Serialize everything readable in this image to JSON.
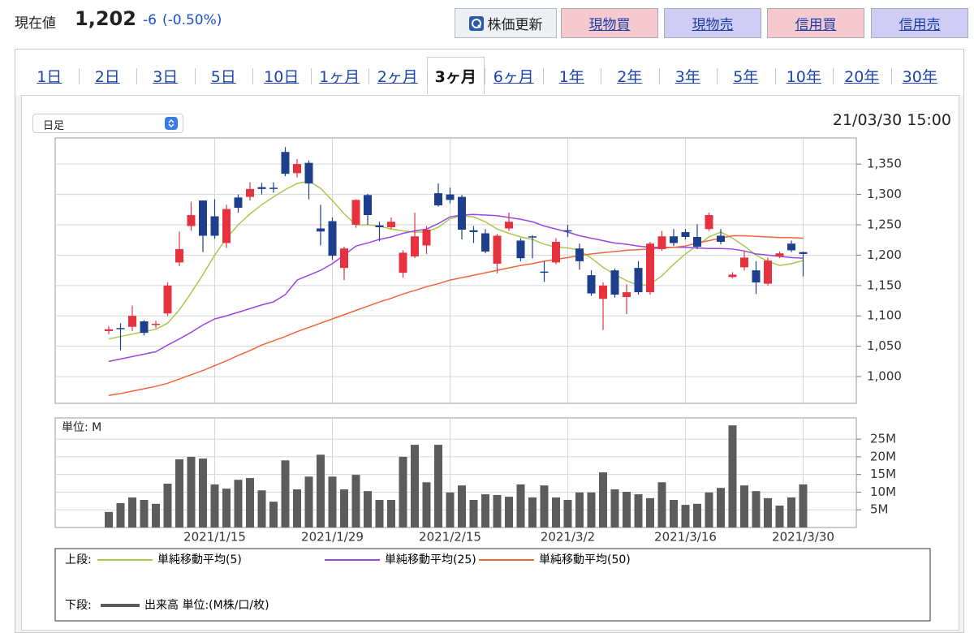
{
  "header": {
    "price_label": "現在値",
    "price": "1,202",
    "change": "-6",
    "change_pct": "(-0.50%)",
    "refresh": "株価更新",
    "buttons": [
      "現物買",
      "現物売",
      "信用買",
      "信用売"
    ]
  },
  "tabs": [
    "1日",
    "2日",
    "3日",
    "5日",
    "10日",
    "1ヶ月",
    "2ヶ月",
    "3ヶ月",
    "6ヶ月",
    "1年",
    "2年",
    "3年",
    "5年",
    "10年",
    "20年",
    "30年"
  ],
  "selected_tab": "3ヶ月",
  "select": "日足",
  "timestamp": "21/03/30 15:00",
  "chart_data": [
    {
      "type": "candlestick",
      "open": [
        1075,
        1080,
        1082,
        1091,
        1085,
        1104,
        1188,
        1248,
        1290,
        1264,
        1220,
        1295,
        1296,
        1312,
        1311,
        1370,
        1335,
        1352,
        1244,
        1256,
        1179,
        1250,
        1299,
        1249,
        1246,
        1171,
        1198,
        1216,
        1302,
        1300,
        1296,
        1241,
        1236,
        1186,
        1244,
        1224,
        1231,
        1173,
        1188,
        1241,
        1211,
        1167,
        1128,
        1175,
        1131,
        1179,
        1139,
        1210,
        1231,
        1238,
        1230,
        1243,
        1232,
        1164,
        1180,
        1175,
        1153,
        1198,
        1219,
        1205
      ],
      "high": [
        1083,
        1088,
        1117,
        1093,
        1092,
        1155,
        1239,
        1288,
        1290,
        1292,
        1283,
        1300,
        1320,
        1319,
        1320,
        1378,
        1358,
        1356,
        1283,
        1262,
        1214,
        1292,
        1301,
        1255,
        1262,
        1208,
        1270,
        1248,
        1318,
        1311,
        1299,
        1248,
        1243,
        1235,
        1270,
        1228,
        1233,
        1190,
        1228,
        1250,
        1219,
        1175,
        1155,
        1178,
        1152,
        1190,
        1222,
        1240,
        1243,
        1243,
        1251,
        1270,
        1243,
        1172,
        1207,
        1190,
        1196,
        1206,
        1224,
        1206
      ],
      "low": [
        1070,
        1043,
        1075,
        1068,
        1080,
        1100,
        1182,
        1240,
        1205,
        1227,
        1212,
        1270,
        1290,
        1300,
        1303,
        1330,
        1328,
        1292,
        1216,
        1192,
        1159,
        1245,
        1250,
        1223,
        1243,
        1163,
        1195,
        1202,
        1280,
        1285,
        1226,
        1220,
        1203,
        1170,
        1240,
        1190,
        1195,
        1156,
        1185,
        1230,
        1176,
        1133,
        1077,
        1130,
        1103,
        1135,
        1135,
        1207,
        1215,
        1226,
        1210,
        1240,
        1218,
        1162,
        1175,
        1136,
        1150,
        1195,
        1205,
        1165
      ],
      "close": [
        1078,
        1078,
        1100,
        1072,
        1087,
        1150,
        1210,
        1266,
        1232,
        1232,
        1276,
        1278,
        1309,
        1309,
        1309,
        1334,
        1350,
        1318,
        1239,
        1199,
        1211,
        1291,
        1266,
        1246,
        1255,
        1204,
        1231,
        1242,
        1282,
        1291,
        1242,
        1238,
        1206,
        1232,
        1255,
        1195,
        1229,
        1171,
        1222,
        1239,
        1190,
        1137,
        1150,
        1135,
        1139,
        1139,
        1219,
        1231,
        1220,
        1230,
        1214,
        1266,
        1222,
        1168,
        1196,
        1155,
        1191,
        1203,
        1208,
        1202
      ],
      "up_color": "#e5323e",
      "down_color": "#1d3f8e",
      "series": [
        {
          "name": "単純移動平均(5)",
          "color": "#a9c94b",
          "values": [
            1062,
            1066,
            1070,
            1074,
            1078,
            1088,
            1110,
            1138,
            1168,
            1200,
            1228,
            1250,
            1268,
            1283,
            1296,
            1308,
            1318,
            1322,
            1310,
            1290,
            1268,
            1250,
            1250,
            1248,
            1243,
            1240,
            1238,
            1238,
            1246,
            1260,
            1265,
            1263,
            1255,
            1243,
            1236,
            1230,
            1226,
            1218,
            1213,
            1212,
            1208,
            1195,
            1180,
            1168,
            1158,
            1150,
            1152,
            1166,
            1185,
            1202,
            1216,
            1230,
            1238,
            1228,
            1215,
            1200,
            1190,
            1183,
            1186,
            1191
          ]
        },
        {
          "name": "単純移動平均(25)",
          "color": "#9a45e6",
          "values": [
            1025,
            1029,
            1033,
            1037,
            1041,
            1052,
            1062,
            1073,
            1085,
            1095,
            1100,
            1106,
            1112,
            1118,
            1123,
            1135,
            1159,
            1167,
            1175,
            1186,
            1200,
            1215,
            1220,
            1226,
            1230,
            1236,
            1240,
            1243,
            1252,
            1263,
            1266,
            1267,
            1266,
            1265,
            1262,
            1259,
            1255,
            1248,
            1243,
            1238,
            1232,
            1228,
            1224,
            1220,
            1218,
            1215,
            1213,
            1213,
            1213,
            1213,
            1212,
            1211,
            1211,
            1210,
            1207,
            1202,
            1200,
            1198,
            1196,
            1195
          ]
        },
        {
          "name": "単純移動平均(50)",
          "color": "#f2653a",
          "values": [
            969,
            972,
            976,
            980,
            984,
            989,
            996,
            1003,
            1010,
            1018,
            1026,
            1035,
            1043,
            1052,
            1059,
            1066,
            1074,
            1081,
            1088,
            1095,
            1102,
            1109,
            1116,
            1123,
            1129,
            1136,
            1142,
            1148,
            1153,
            1159,
            1163,
            1167,
            1171,
            1175,
            1179,
            1183,
            1186,
            1190,
            1193,
            1196,
            1199,
            1202,
            1204,
            1206,
            1208,
            1209,
            1210,
            1212,
            1213,
            1215,
            1220,
            1224,
            1228,
            1232,
            1232,
            1231,
            1230,
            1229,
            1229,
            1228
          ]
        }
      ],
      "ylim": [
        956,
        1393
      ],
      "yticks": [
        {
          "value": 1000,
          "label": "1,000"
        },
        {
          "value": 1050,
          "label": "1,050"
        },
        {
          "value": 1100,
          "label": "1,100"
        },
        {
          "value": 1150,
          "label": "1,150"
        },
        {
          "value": 1200,
          "label": "1,200"
        },
        {
          "value": 1250,
          "label": "1,250"
        },
        {
          "value": 1300,
          "label": "1,300"
        },
        {
          "value": 1350,
          "label": "1,350"
        }
      ],
      "grid": true,
      "legend_label": "上段:"
    },
    {
      "type": "bar",
      "unit_label": "単位: M",
      "categories": [
        null,
        null,
        null,
        null,
        null,
        null,
        null,
        null,
        null,
        "2021/1/15",
        null,
        null,
        null,
        null,
        null,
        null,
        null,
        null,
        null,
        "2021/1/29",
        null,
        null,
        null,
        null,
        null,
        null,
        null,
        null,
        null,
        "2021/2/15",
        null,
        null,
        null,
        null,
        null,
        null,
        null,
        null,
        null,
        "2021/3/2",
        null,
        null,
        null,
        null,
        null,
        null,
        null,
        null,
        null,
        "2021/3/16",
        null,
        null,
        null,
        null,
        null,
        null,
        null,
        null,
        null,
        "2021/3/30"
      ],
      "series": [
        {
          "name": "出来高 単位:(M株/口/枚)",
          "color": "#5c5c5c",
          "values": [
            4.4,
            6.9,
            8.5,
            7.8,
            6.7,
            12.4,
            19.3,
            20,
            19.5,
            12.2,
            11,
            13.5,
            14,
            10.5,
            7.3,
            19,
            10.8,
            14.4,
            20.6,
            14.4,
            10.8,
            14.9,
            10.3,
            7.8,
            7.8,
            20,
            23.4,
            12.8,
            23.4,
            9.9,
            11.9,
            7.8,
            9.4,
            9.2,
            8.7,
            12.2,
            8.5,
            11.9,
            8.5,
            7.8,
            9.9,
            9.9,
            15.6,
            10.8,
            10.1,
            9.4,
            8.3,
            12.8,
            7.8,
            6.4,
            6.7,
            9.9,
            11.2,
            28.9,
            11.9,
            10.3,
            8.3,
            6.2,
            8.5,
            12.2
          ]
        }
      ],
      "ylim": [
        0,
        31
      ],
      "yticks": [
        {
          "value": 5,
          "label": "5M"
        },
        {
          "value": 10,
          "label": "10M"
        },
        {
          "value": 15,
          "label": "15M"
        },
        {
          "value": 20,
          "label": "20M"
        },
        {
          "value": 25,
          "label": "25M"
        }
      ],
      "grid": true,
      "legend_label": "下段:"
    }
  ]
}
